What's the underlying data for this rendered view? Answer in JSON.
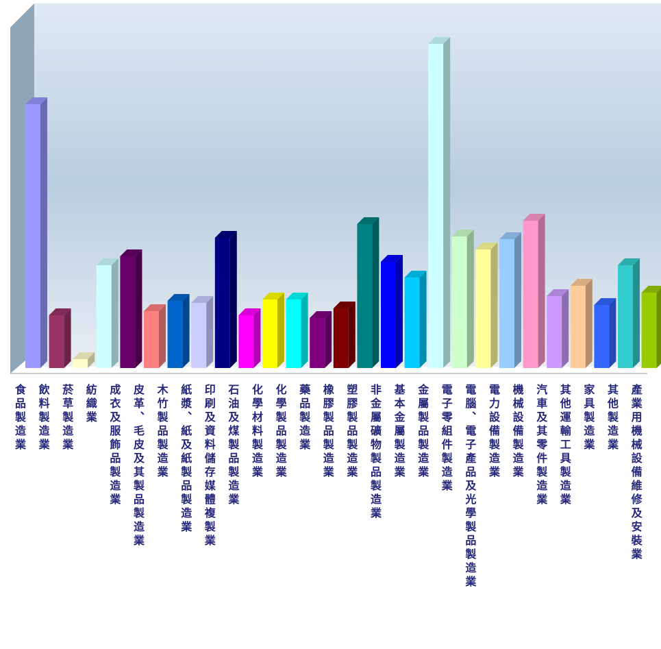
{
  "chart_data": {
    "type": "bar3d",
    "categories": [
      "食品製造業",
      "飲料製造業",
      "菸草製造業",
      "紡織業",
      "成衣及服飾品製造業",
      "皮革、毛皮及其製品製造業",
      "木竹製品製造業",
      "紙漿、紙及紙製品製造業",
      "印刷及資料儲存媒體複製業",
      "石油及煤製品製造業",
      "化學材料製造業",
      "化學製品製造業",
      "藥品製造業",
      "橡膠製品製造業",
      "塑膠製品製造業",
      "非金屬礦物製品製造業",
      "基本金屬製造業",
      "金屬製品製造業",
      "電子零組件製造業",
      "電腦、電子產品及光學製品製造業",
      "電力設備製造業",
      "機械設備製造業",
      "汽車及其零件製造業",
      "其他運輸工具製造業",
      "家具製造業",
      "其他製造業",
      "產業用機械設備維修及安裝業"
    ],
    "values": [
      385,
      77,
      13,
      150,
      163,
      83,
      98,
      95,
      190,
      77,
      100,
      100,
      73,
      87,
      210,
      155,
      132,
      473,
      192,
      173,
      188,
      215,
      105,
      120,
      92,
      150,
      110
    ],
    "colors": [
      "#9999ff",
      "#993366",
      "#ffffcc",
      "#ccffff",
      "#660066",
      "#ff8080",
      "#0066cc",
      "#ccccff",
      "#000080",
      "#ff00ff",
      "#ffff00",
      "#00ffff",
      "#800080",
      "#800000",
      "#008080",
      "#0000ff",
      "#00ccff",
      "#ccffff",
      "#ccffcc",
      "#ffff99",
      "#99ccff",
      "#ff99cc",
      "#cc99ff",
      "#ffcc99",
      "#3366ff",
      "#33cccc",
      "#99cc00"
    ]
  }
}
